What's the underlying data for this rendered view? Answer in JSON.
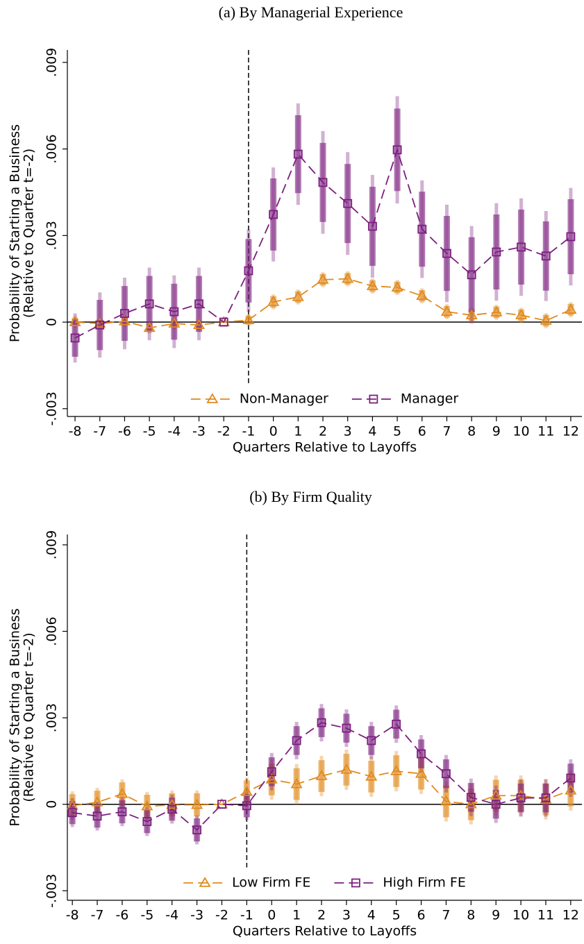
{
  "chart_data": [
    {
      "type": "line",
      "title": "(a) By Managerial Experience",
      "xlabel": "Quarters Relative to Layoffs",
      "ylabel": [
        "Probability of Starting a Business",
        "(Relative to Quarter t=-2)"
      ],
      "x": [
        -8,
        -7,
        -6,
        -5,
        -4,
        -3,
        -2,
        -1,
        0,
        1,
        2,
        3,
        4,
        5,
        6,
        7,
        8,
        9,
        10,
        11,
        12
      ],
      "xlim": [
        -8.31,
        12.45
      ],
      "xticks": [
        -8,
        -7,
        -6,
        -5,
        -4,
        -3,
        -2,
        -1,
        0,
        1,
        2,
        3,
        4,
        5,
        6,
        7,
        8,
        9,
        10,
        11,
        12
      ],
      "ylim": [
        -0.00327,
        0.00943
      ],
      "yticks": [
        {
          "value": -0.003,
          "label": "-.003"
        },
        0,
        {
          "value": 0.003,
          "label": ".003"
        },
        {
          "value": 0.006,
          "label": ".006"
        },
        {
          "value": 0.009,
          "label": ".009"
        }
      ],
      "vline": -1,
      "hline": 0,
      "legend": "bottom",
      "series": [
        {
          "name": "Non-Manager",
          "color": "#e08a1e",
          "marker": "triangle",
          "values": [
            0,
            -5e-05,
            3e-05,
            -0.0002,
            -5e-05,
            -0.0001,
            0,
            7e-05,
            0.0007,
            0.00087,
            0.00147,
            0.0015,
            0.00125,
            0.0012,
            0.00091,
            0.00036,
            0.00024,
            0.00034,
            0.00024,
            5e-05,
            0.00043
          ],
          "ci_inner": [
            [
              -0.00015,
              0.00015
            ],
            [
              -0.0002,
              0.0001
            ],
            [
              -0.00012,
              0.00018
            ],
            [
              -0.00035,
              -5e-05
            ],
            [
              -0.0002,
              0.0001
            ],
            [
              -0.00025,
              5e-05
            ],
            [
              0,
              0
            ],
            [
              -8e-05,
              0.00022
            ],
            [
              0.0005,
              0.0009
            ],
            [
              0.00067,
              0.00107
            ],
            [
              0.00127,
              0.00167
            ],
            [
              0.0013,
              0.0017
            ],
            [
              0.00105,
              0.00145
            ],
            [
              0.001,
              0.0014
            ],
            [
              0.00071,
              0.00111
            ],
            [
              0.00016,
              0.00056
            ],
            [
              4e-05,
              0.00044
            ],
            [
              0.00014,
              0.00054
            ],
            [
              4e-05,
              0.00044
            ],
            [
              -0.00015,
              0.00025
            ],
            [
              0.00023,
              0.00063
            ]
          ],
          "ci_outer": [
            [
              -0.0002,
              0.0002
            ],
            [
              -0.00025,
              0.00015
            ],
            [
              -0.00017,
              0.00023
            ],
            [
              -0.0004,
              0
            ],
            [
              -0.00025,
              0.00015
            ],
            [
              -0.0003,
              0.0001
            ],
            [
              0,
              0
            ],
            [
              -0.00013,
              0.00027
            ],
            [
              0.00044,
              0.00096
            ],
            [
              0.00061,
              0.00113
            ],
            [
              0.00121,
              0.00173
            ],
            [
              0.00124,
              0.00176
            ],
            [
              0.00099,
              0.00151
            ],
            [
              0.00094,
              0.00146
            ],
            [
              0.00065,
              0.00117
            ],
            [
              0.0001,
              0.00062
            ],
            [
              -2e-05,
              0.0005
            ],
            [
              8e-05,
              0.0006
            ],
            [
              -2e-05,
              0.0005
            ],
            [
              -0.00021,
              0.00031
            ],
            [
              0.00017,
              0.00069
            ]
          ]
        },
        {
          "name": "Manager",
          "color": "#7b1f7f",
          "marker": "square",
          "values": [
            -0.00055,
            -0.0001,
            0.0003,
            0.00063,
            0.00036,
            0.00063,
            0,
            0.00178,
            0.00373,
            0.00582,
            0.00484,
            0.00411,
            0.00332,
            0.00597,
            0.00322,
            0.00238,
            0.00164,
            0.00243,
            0.0026,
            0.00229,
            0.00296
          ],
          "ci_inner": [
            [
              -0.0012,
              0.0001
            ],
            [
              -0.00097,
              0.00077
            ],
            [
              -0.00065,
              0.00125
            ],
            [
              -0.00034,
              0.0016
            ],
            [
              -0.00061,
              0.00133
            ],
            [
              -0.00034,
              0.0016
            ],
            [
              0,
              0
            ],
            [
              0.00068,
              0.00288
            ],
            [
              0.00248,
              0.00498
            ],
            [
              0.00447,
              0.00717
            ],
            [
              0.00347,
              0.00621
            ],
            [
              0.00274,
              0.00548
            ],
            [
              0.00195,
              0.00469
            ],
            [
              0.00454,
              0.0074
            ],
            [
              0.00192,
              0.00452
            ],
            [
              0.00108,
              0.00368
            ],
            [
              0.00034,
              0.00294
            ],
            [
              0.00113,
              0.00373
            ],
            [
              0.0013,
              0.0039
            ],
            [
              0.00109,
              0.00349
            ],
            [
              0.00166,
              0.00426
            ]
          ],
          "ci_outer": [
            [
              -0.0014,
              0.0003
            ],
            [
              -0.00123,
              0.00103
            ],
            [
              -0.00094,
              0.00154
            ],
            [
              -0.00063,
              0.00189
            ],
            [
              -0.0009,
              0.00162
            ],
            [
              -0.00063,
              0.00189
            ],
            [
              0,
              0
            ],
            [
              0.00035,
              0.00321
            ],
            [
              0.0021,
              0.00536
            ],
            [
              0.00406,
              0.00758
            ],
            [
              0.00306,
              0.00662
            ],
            [
              0.00233,
              0.00589
            ],
            [
              0.00154,
              0.0051
            ],
            [
              0.00411,
              0.00783
            ],
            [
              0.00153,
              0.00491
            ],
            [
              0.00069,
              0.00407
            ],
            [
              -5e-05,
              0.00333
            ],
            [
              0.00074,
              0.00412
            ],
            [
              0.00091,
              0.00429
            ],
            [
              0.00073,
              0.00385
            ],
            [
              0.00127,
              0.00465
            ]
          ]
        }
      ]
    },
    {
      "type": "line",
      "title": "(b) By Firm Quality",
      "xlabel": "Quarters Relative to Layoffs",
      "ylabel": [
        "Probability of Starting a Business",
        "(Relative to Quarter t=-2)"
      ],
      "x": [
        -8,
        -7,
        -6,
        -5,
        -4,
        -3,
        -2,
        -1,
        0,
        1,
        2,
        3,
        4,
        5,
        6,
        7,
        8,
        9,
        10,
        11,
        12
      ],
      "xlim": [
        -8.2,
        12.45
      ],
      "xticks": [
        -8,
        -7,
        -6,
        -5,
        -4,
        -3,
        -2,
        -1,
        0,
        1,
        2,
        3,
        4,
        5,
        6,
        7,
        8,
        9,
        10,
        11,
        12
      ],
      "ylim": [
        -0.00333,
        0.00936
      ],
      "yticks": [
        {
          "value": -0.003,
          "label": "-.003"
        },
        0,
        {
          "value": 0.003,
          "label": ".003"
        },
        {
          "value": 0.006,
          "label": ".006"
        },
        {
          "value": 0.009,
          "label": ".009"
        }
      ],
      "vline": -1,
      "hline": 0,
      "legend": "bottom",
      "series": [
        {
          "name": "Low Firm FE",
          "color": "#e08a1e",
          "marker": "triangle",
          "values": [
            -5e-05,
            7e-05,
            0.00036,
            -7e-05,
            -2e-05,
            -2e-05,
            0,
            0.00043,
            0.00086,
            0.0007,
            0.00098,
            0.0012,
            0.00096,
            0.00115,
            0.00106,
            0.0001,
            0,
            0.0003,
            0.0003,
            0.00017,
            0.00048
          ],
          "ci_inner": [
            [
              -0.00045,
              0.00035
            ],
            [
              -0.00033,
              0.00047
            ],
            [
              -4e-05,
              0.00076
            ],
            [
              -0.00047,
              0.00033
            ],
            [
              -0.00042,
              0.00038
            ],
            [
              -0.00042,
              0.00038
            ],
            [
              0,
              0
            ],
            [
              3e-05,
              0.00083
            ],
            [
              0.00031,
              0.00141
            ],
            [
              0.00015,
              0.00125
            ],
            [
              0.00043,
              0.00153
            ],
            [
              0.00065,
              0.00175
            ],
            [
              0.00041,
              0.00151
            ],
            [
              0.0006,
              0.0017
            ],
            [
              0.00051,
              0.00161
            ],
            [
              -0.00045,
              0.00065
            ],
            [
              -0.00055,
              0.00055
            ],
            [
              -0.00025,
              0.00085
            ],
            [
              -0.00025,
              0.00085
            ],
            [
              -0.00038,
              0.00072
            ],
            [
              -7e-05,
              0.00103
            ]
          ],
          "ci_outer": [
            [
              -0.00055,
              0.00045
            ],
            [
              -0.00043,
              0.00057
            ],
            [
              -0.00014,
              0.00086
            ],
            [
              -0.00057,
              0.00043
            ],
            [
              -0.00052,
              0.00048
            ],
            [
              -0.00052,
              0.00048
            ],
            [
              0,
              0
            ],
            [
              -7e-05,
              0.00093
            ],
            [
              0.00016,
              0.00156
            ],
            [
              0,
              0.0014
            ],
            [
              0.00028,
              0.00168
            ],
            [
              0.0005,
              0.0019
            ],
            [
              0.00026,
              0.00166
            ],
            [
              0.00045,
              0.00185
            ],
            [
              0.00036,
              0.00176
            ],
            [
              -0.0006,
              0.0008
            ],
            [
              -0.0007,
              0.0007
            ],
            [
              -0.0004,
              0.001
            ],
            [
              -0.0004,
              0.001
            ],
            [
              -0.00053,
              0.00087
            ],
            [
              -0.00022,
              0.00118
            ]
          ]
        },
        {
          "name": "High Firm FE",
          "color": "#7b1f7f",
          "marker": "square",
          "values": [
            -0.00029,
            -0.00041,
            -0.00026,
            -0.0006,
            -0.00017,
            -0.00089,
            0,
            -5e-05,
            0.00113,
            0.00221,
            0.00283,
            0.00264,
            0.00221,
            0.00278,
            0.00175,
            0.00106,
            0.00024,
            0,
            0.00022,
            0.00022,
            0.00091
          ],
          "ci_inner": [
            [
              -0.00069,
              0.00011
            ],
            [
              -0.00081,
              -1e-05
            ],
            [
              -0.00066,
              0.00014
            ],
            [
              -0.001,
              -0.0002
            ],
            [
              -0.00057,
              0.00023
            ],
            [
              -0.00129,
              -0.00049
            ],
            [
              0,
              0
            ],
            [
              -0.00045,
              0.00035
            ],
            [
              0.00063,
              0.00163
            ],
            [
              0.00171,
              0.00271
            ],
            [
              0.00233,
              0.00333
            ],
            [
              0.00214,
              0.00314
            ],
            [
              0.00171,
              0.00271
            ],
            [
              0.00228,
              0.00328
            ],
            [
              0.00125,
              0.00225
            ],
            [
              0.00056,
              0.00156
            ],
            [
              -0.00026,
              0.00074
            ],
            [
              -0.0005,
              0.0005
            ],
            [
              -0.00028,
              0.00072
            ],
            [
              -0.00028,
              0.00072
            ],
            [
              0.00041,
              0.00141
            ]
          ],
          "ci_outer": [
            [
              -0.00079,
              0.00021
            ],
            [
              -0.00091,
              9e-05
            ],
            [
              -0.00076,
              0.00024
            ],
            [
              -0.0011,
              -0.0001
            ],
            [
              -0.00067,
              0.00033
            ],
            [
              -0.00139,
              -0.00039
            ],
            [
              0,
              0
            ],
            [
              -0.00055,
              0.00045
            ],
            [
              0.00048,
              0.00178
            ],
            [
              0.00156,
              0.00286
            ],
            [
              0.00218,
              0.00348
            ],
            [
              0.00199,
              0.00329
            ],
            [
              0.00156,
              0.00286
            ],
            [
              0.00213,
              0.00343
            ],
            [
              0.0011,
              0.0024
            ],
            [
              0.00041,
              0.00171
            ],
            [
              -0.00041,
              0.00089
            ],
            [
              -0.00065,
              0.00065
            ],
            [
              -0.00043,
              0.00087
            ],
            [
              -0.00043,
              0.00087
            ],
            [
              0.00026,
              0.00156
            ]
          ]
        }
      ]
    }
  ]
}
